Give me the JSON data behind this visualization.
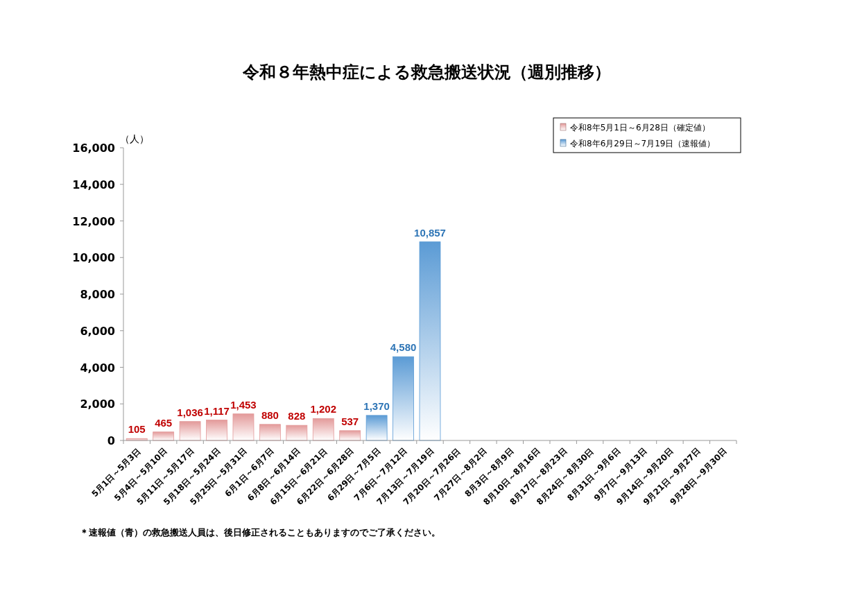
{
  "chart_data": {
    "type": "bar",
    "title": "令和８年熱中症による救急搬送状況（週別推移）",
    "ylabel": "（人）",
    "categories": [
      "5月1日～5月3日",
      "5月4日～5月10日",
      "5月11日～5月17日",
      "5月18日～5月24日",
      "5月25日～5月31日",
      "6月1日～6月7日",
      "6月8日～6月14日",
      "6月15日～6月21日",
      "6月22日～6月28日",
      "6月29日～7月5日",
      "7月6日～7月12日",
      "7月13日～7月19日",
      "7月20日～7月26日",
      "7月27日～8月2日",
      "8月3日～8月9日",
      "8月10日～8月16日",
      "8月17日～8月23日",
      "8月24日～8月30日",
      "8月31日～9月6日",
      "9月7日～9月13日",
      "9月14日～9月20日",
      "9月21日～9月27日",
      "9月28日～9月30日"
    ],
    "series": [
      {
        "name": "令和8年5月1日～6月28日（確定値）",
        "color": "#e39a9a",
        "values": [
          105,
          465,
          1036,
          1117,
          1453,
          880,
          828,
          1202,
          537,
          null,
          null,
          null,
          null,
          null,
          null,
          null,
          null,
          null,
          null,
          null,
          null,
          null,
          null
        ],
        "value_labels": [
          "105",
          "465",
          "1,036",
          "1,117",
          "1,453",
          "880",
          "828",
          "1,202",
          "537",
          null,
          null,
          null,
          null,
          null,
          null,
          null,
          null,
          null,
          null,
          null,
          null,
          null,
          null
        ]
      },
      {
        "name": "令和8年6月29日～7月19日（速報値）",
        "color": "#5b9bd5",
        "values": [
          null,
          null,
          null,
          null,
          null,
          null,
          null,
          null,
          null,
          1370,
          4580,
          10857,
          null,
          null,
          null,
          null,
          null,
          null,
          null,
          null,
          null,
          null,
          null
        ],
        "value_labels": [
          null,
          null,
          null,
          null,
          null,
          null,
          null,
          null,
          null,
          "1,370",
          "4,580",
          "10,857",
          null,
          null,
          null,
          null,
          null,
          null,
          null,
          null,
          null,
          null,
          null
        ]
      }
    ],
    "ylim": [
      0,
      16000
    ],
    "yticks": [
      0,
      {
        "value": 2000,
        "label": "2,000"
      },
      {
        "value": 4000,
        "label": "4,000"
      },
      {
        "value": 6000,
        "label": "6,000"
      },
      {
        "value": 8000,
        "label": "8,000"
      },
      {
        "value": 10000,
        "label": "10,000"
      },
      {
        "value": 12000,
        "label": "12,000"
      },
      {
        "value": 14000,
        "label": "14,000"
      },
      {
        "value": 16000,
        "label": "16,000"
      }
    ],
    "grid": false,
    "legend": "top right",
    "annotations": [
      "＊速報値（青）の救急搬送人員は、後日修正されることもありますのでご了承ください。"
    ]
  }
}
